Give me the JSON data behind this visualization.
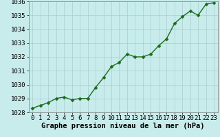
{
  "x": [
    0,
    1,
    2,
    3,
    4,
    5,
    6,
    7,
    8,
    9,
    10,
    11,
    12,
    13,
    14,
    15,
    16,
    17,
    18,
    19,
    20,
    21,
    22,
    23
  ],
  "y": [
    1028.3,
    1028.5,
    1028.7,
    1029.0,
    1029.1,
    1028.9,
    1029.0,
    1029.0,
    1029.8,
    1030.5,
    1031.3,
    1031.6,
    1032.2,
    1032.0,
    1032.0,
    1032.2,
    1032.8,
    1033.3,
    1034.4,
    1034.9,
    1035.3,
    1035.0,
    1035.8,
    1035.9
  ],
  "ylim": [
    1028,
    1036
  ],
  "xlim_min": -0.5,
  "xlim_max": 23.5,
  "yticks": [
    1028,
    1029,
    1030,
    1031,
    1032,
    1033,
    1034,
    1035,
    1036
  ],
  "xticks": [
    0,
    1,
    2,
    3,
    4,
    5,
    6,
    7,
    8,
    9,
    10,
    11,
    12,
    13,
    14,
    15,
    16,
    17,
    18,
    19,
    20,
    21,
    22,
    23
  ],
  "line_color": "#1a6b1a",
  "marker_color": "#1a6b1a",
  "bg_color": "#c8ecec",
  "grid_color": "#aacccc",
  "xlabel": "Graphe pression niveau de la mer (hPa)",
  "xlabel_fontsize": 7.5,
  "tick_fontsize": 6.5,
  "line_width": 1.0,
  "marker_size": 2.5
}
